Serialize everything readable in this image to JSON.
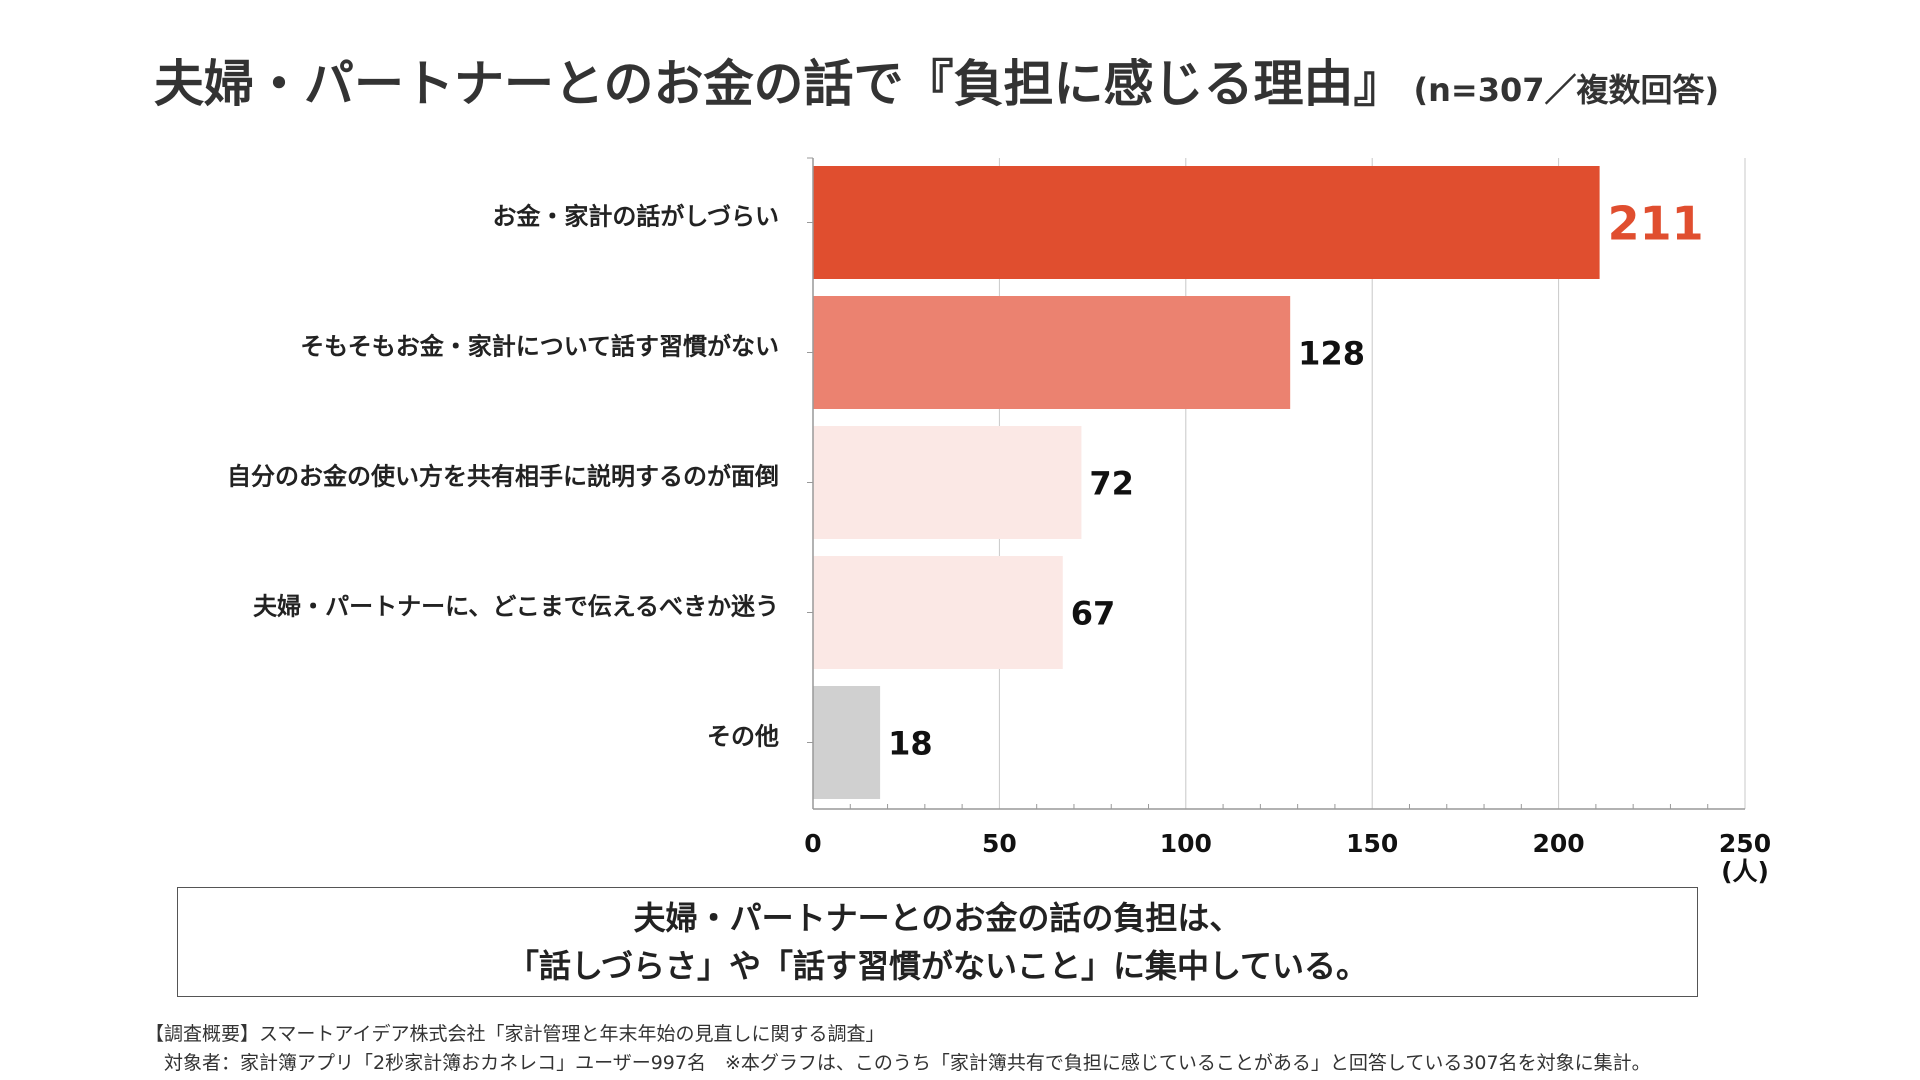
{
  "title": {
    "main": "夫婦・パートナーとのお金の話で『負担に感じる理由』",
    "sub": "(n=307／複数回答)"
  },
  "chart_data": {
    "type": "bar",
    "orientation": "horizontal",
    "categories": [
      "お金・家計の話がしづらい",
      "そもそもお金・家計について話す習慣がない",
      "自分のお金の使い方を共有相手に説明するのが面倒",
      "夫婦・パートナーに、どこまで伝えるべきか迷う",
      "その他"
    ],
    "values": [
      211,
      128,
      72,
      67,
      18
    ],
    "colors": [
      "#E04E2F",
      "#EB8270",
      "#FBE8E5",
      "#FBE8E5",
      "#D0D0D0"
    ],
    "label_colors": [
      "#E04E2F",
      "#111111",
      "#111111",
      "#111111",
      "#111111"
    ],
    "xlim": [
      0,
      250
    ],
    "xticks": [
      "0",
      "50",
      "100",
      "150",
      "200",
      "250"
    ],
    "xunit": "(人)",
    "grid": true
  },
  "summary": {
    "line1": "夫婦・パートナーとのお金の話の負担は、",
    "line2": "「話しづらさ」や「話す習慣がないこと」に集中している。"
  },
  "footnote": {
    "line1": "【調査概要】スマートアイデア株式会社「家計管理と年末年始の見直しに関する調査」",
    "line2": "対象者：家計簿アプリ「2秒家計簿おカネレコ」ユーザー997名　※本グラフは、このうち「家計簿共有で負担に感じていることがある」と回答している307名を対象に集計。"
  }
}
